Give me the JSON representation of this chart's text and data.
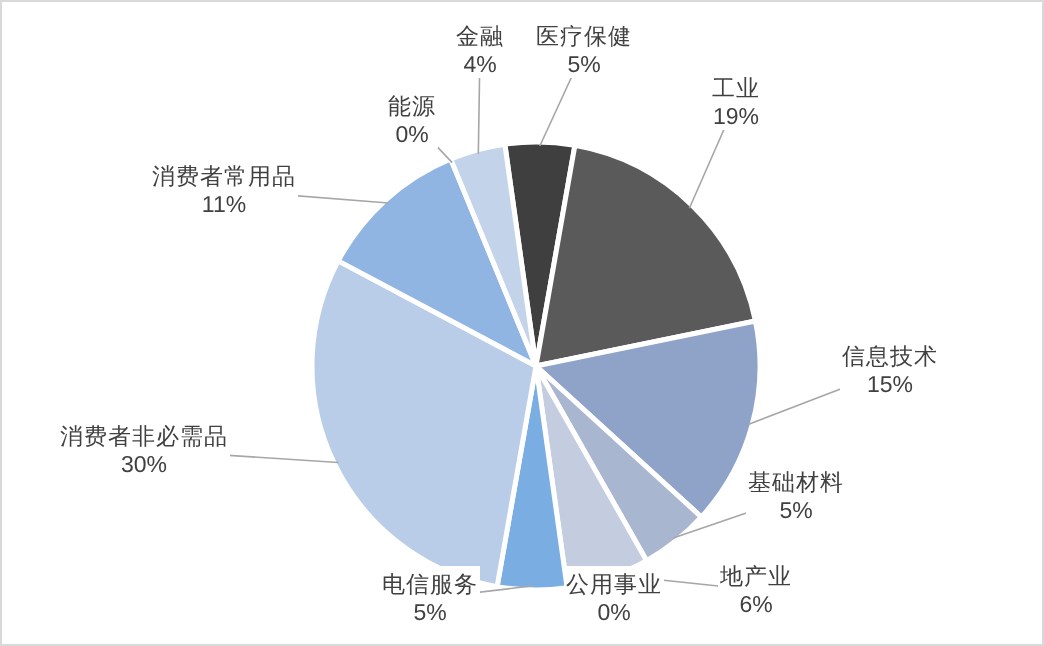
{
  "chart_data": {
    "type": "pie",
    "categories": [
      "医疗保健",
      "工业",
      "信息技术",
      "基础材料",
      "地产业",
      "公用事业",
      "电信服务",
      "消费者非必需品",
      "消费者常用品",
      "能源",
      "金融"
    ],
    "values": [
      5,
      19,
      15,
      5,
      6,
      0,
      5,
      30,
      11,
      0,
      4
    ],
    "value_labels": [
      "5%",
      "19%",
      "15%",
      "5%",
      "6%",
      "0%",
      "5%",
      "30%",
      "11%",
      "0%",
      "4%"
    ],
    "colors": [
      "#3f3f3f",
      "#5a5a5a",
      "#8fa2c8",
      "#a8b6d0",
      "#c4cde0",
      "#b4c3dc",
      "#7aaee2",
      "#b9cde8",
      "#90b5e2",
      "#a9c2e4",
      "#c3d3ea"
    ],
    "legend": false
  }
}
